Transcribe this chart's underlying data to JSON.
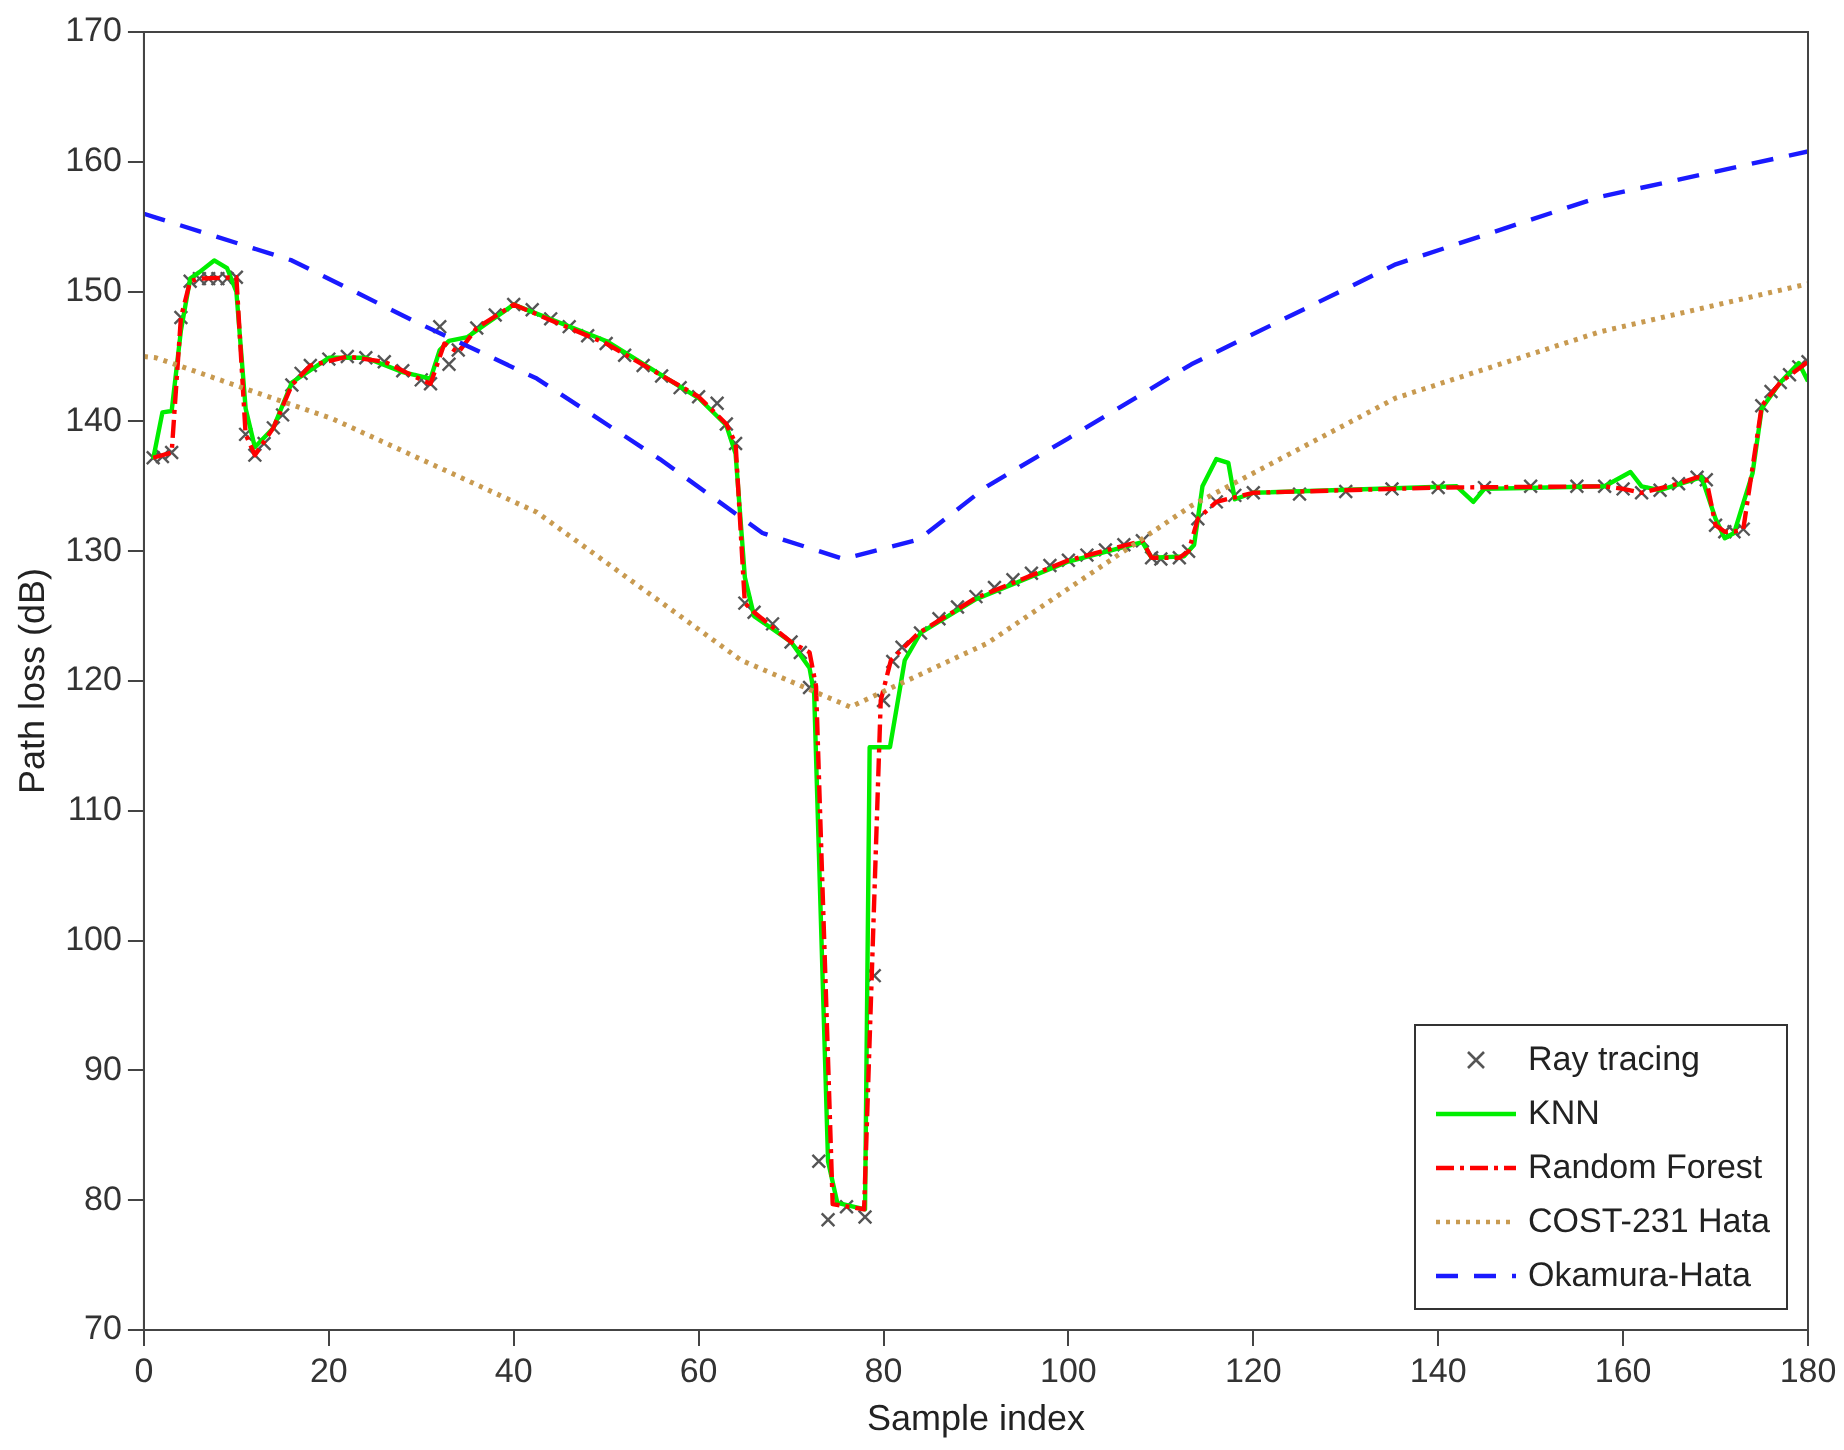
{
  "chart_data": {
    "type": "line",
    "xlabel": "Sample index",
    "ylabel": "Path loss (dB)",
    "xlim": [
      0,
      180
    ],
    "xticks": [
      0,
      20,
      40,
      60,
      80,
      100,
      120,
      140,
      160,
      180
    ],
    "ylim": [
      70,
      170
    ],
    "yticks": [
      70,
      80,
      90,
      100,
      110,
      120,
      130,
      140,
      150,
      160,
      170
    ],
    "grid": false,
    "legend": "bottom right",
    "series": [
      {
        "name": "Ray tracing",
        "type": "scatter",
        "marker": "cross",
        "color": "#555555",
        "x": [
          1,
          2,
          3,
          4,
          5,
          6,
          7,
          8,
          9,
          10,
          11,
          12,
          13,
          14,
          15,
          16,
          17,
          18,
          20,
          22,
          24,
          26,
          28,
          30,
          31,
          32,
          33,
          34,
          36,
          38,
          40,
          42,
          44,
          46,
          48,
          50,
          52,
          54,
          56,
          58,
          60,
          62,
          63,
          64,
          65,
          66,
          68,
          70,
          71,
          72,
          73,
          74,
          76,
          78,
          79,
          80,
          81,
          82,
          84,
          86,
          88,
          90,
          92,
          94,
          96,
          98,
          100,
          102,
          104,
          106,
          108,
          109,
          110,
          112,
          113,
          114,
          116,
          118,
          120,
          125,
          130,
          135,
          140,
          145,
          150,
          155,
          158,
          160,
          162,
          164,
          166,
          168,
          169,
          170,
          171,
          172,
          173,
          175,
          176,
          177,
          178,
          179,
          180
        ],
        "values": [
          137.2,
          137.3,
          137.6,
          148,
          150.8,
          151,
          151,
          151,
          151,
          151.1,
          139,
          137.4,
          138.3,
          139.5,
          140.5,
          142.8,
          143.7,
          144.3,
          144.8,
          145,
          144.9,
          144.6,
          143.9,
          143.2,
          142.9,
          147.3,
          144.4,
          145.5,
          147.2,
          148.2,
          149,
          148.6,
          147.9,
          147.3,
          146.6,
          146,
          145.1,
          144.3,
          143.5,
          142.6,
          141.9,
          141.4,
          139.8,
          138.3,
          126,
          125.3,
          124.4,
          123,
          122.2,
          119.5,
          83,
          78.5,
          79.5,
          78.7,
          97.3,
          118.5,
          121.5,
          122.6,
          123.7,
          124.8,
          125.7,
          126.5,
          127.2,
          127.8,
          128.3,
          128.9,
          129.3,
          129.7,
          130.1,
          130.5,
          130.8,
          129.5,
          129.4,
          129.5,
          130,
          132.5,
          133.8,
          134.3,
          134.5,
          134.4,
          134.6,
          134.8,
          134.9,
          134.9,
          135,
          135,
          135,
          134.8,
          134.5,
          134.7,
          135.2,
          135.7,
          135.5,
          132,
          131.5,
          131.5,
          131.7,
          141.2,
          142.3,
          143,
          143.6,
          144.2,
          144.6
        ]
      },
      {
        "name": "KNN",
        "type": "line",
        "line_style": "solid",
        "color": "#00ee00",
        "x": [
          1,
          2,
          3,
          4,
          5,
          6,
          7.6,
          9,
          10,
          11,
          12,
          14,
          16,
          20,
          24,
          28,
          31,
          32,
          33,
          35,
          37,
          40,
          50,
          60,
          63,
          64,
          65,
          66,
          70,
          72,
          72.5,
          74,
          75,
          78,
          78.5,
          80.7,
          82.3,
          84,
          90,
          100,
          108,
          109,
          112.5,
          113.6,
          114.5,
          116,
          117.3,
          118,
          120,
          142,
          143.8,
          145,
          158,
          160.8,
          162,
          164,
          168.5,
          170,
          171,
          172,
          174,
          175,
          177,
          179,
          180
        ],
        "values": [
          137.1,
          140.7,
          140.8,
          147,
          151,
          151.5,
          152.4,
          151.8,
          150,
          141,
          138,
          139.5,
          143,
          144.9,
          144.9,
          143.8,
          143.3,
          145.5,
          146.2,
          146.5,
          147.5,
          149,
          146.2,
          141.8,
          139.7,
          137.5,
          128,
          125,
          123,
          121,
          119,
          83,
          79.8,
          79.3,
          114.9,
          114.9,
          121.6,
          123.7,
          126.3,
          129.2,
          130.7,
          129.5,
          129.6,
          130.5,
          135,
          137.1,
          136.8,
          134,
          134.5,
          135,
          133.8,
          134.8,
          135,
          136.1,
          135,
          134.7,
          135.7,
          132.5,
          131,
          131.4,
          136,
          141,
          143,
          144.5,
          143.1
        ]
      },
      {
        "name": "Random Forest",
        "type": "line",
        "line_style": "dashdot",
        "color": "#ff0000",
        "x": [
          1,
          3,
          4,
          5,
          6,
          10,
          11,
          12,
          14,
          16,
          18,
          22,
          26,
          30,
          31,
          32.5,
          34,
          36,
          40,
          50,
          60,
          63,
          64,
          65,
          66,
          70,
          72,
          72.7,
          74.5,
          77.9,
          79.7,
          80.8,
          83.8,
          90,
          100,
          108,
          109,
          112,
          113,
          114,
          116,
          120,
          140,
          158,
          160,
          162,
          166,
          168,
          169,
          170,
          171,
          172,
          173,
          175,
          177,
          180
        ],
        "values": [
          137.2,
          137.6,
          148,
          150.8,
          151,
          151.1,
          139,
          137.4,
          139.5,
          142.8,
          144.3,
          145,
          144.6,
          143.2,
          142.9,
          146,
          145.3,
          147.2,
          149,
          146,
          141.9,
          139.8,
          138.3,
          126,
          125.3,
          123,
          122.2,
          119.6,
          79.7,
          79.3,
          118.5,
          121.6,
          123.7,
          126.4,
          129.3,
          130.8,
          129.5,
          129.5,
          130,
          132.5,
          133.8,
          134.5,
          134.9,
          135,
          134.8,
          134.5,
          135.2,
          135.7,
          135.5,
          132,
          131.5,
          131.5,
          131.7,
          141.2,
          143,
          144.6
        ]
      },
      {
        "name": "COST-231 Hata",
        "type": "line",
        "line_style": "dotted",
        "color": "#c89a50",
        "x": [
          0,
          1.3,
          20.4,
          42.5,
          64.6,
          76.4,
          91.2,
          113.3,
          135.4,
          157.5,
          180
        ],
        "values": [
          145,
          144.9,
          140.2,
          133,
          121.6,
          118,
          122.9,
          133.5,
          141.8,
          146.9,
          150.6
        ]
      },
      {
        "name": "Okamura-Hata",
        "type": "line",
        "line_style": "dashed",
        "color": "#1a1aff",
        "x": [
          0,
          1.3,
          16,
          29.3,
          42.5,
          55.8,
          66.9,
          75.7,
          83.8,
          91.2,
          100,
          113.3,
          135.4,
          157.5,
          180
        ],
        "values": [
          156,
          155.7,
          152.4,
          147.7,
          143.3,
          137.1,
          131.4,
          129.4,
          130.9,
          135,
          138.7,
          144.4,
          152.1,
          157.3,
          160.8
        ]
      }
    ]
  }
}
